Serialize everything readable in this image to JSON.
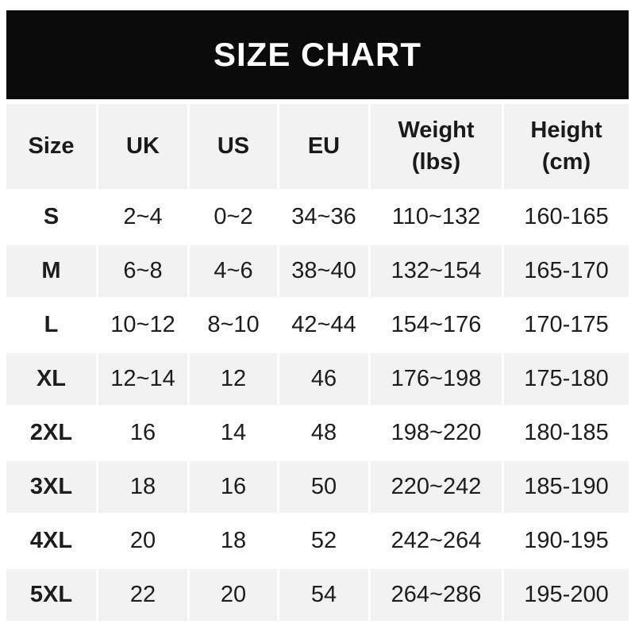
{
  "banner": {
    "title": "SIZE CHART"
  },
  "table": {
    "header_labels": [
      "Size",
      "UK",
      "US",
      "EU",
      "Weight\n(lbs)",
      "Height\n(cm)"
    ]
  },
  "chart_data": {
    "type": "table",
    "title": "SIZE CHART",
    "columns": [
      "Size",
      "UK",
      "US",
      "EU",
      "Weight (lbs)",
      "Height (cm)"
    ],
    "rows": [
      [
        "S",
        "2~4",
        "0~2",
        "34~36",
        "110~132",
        "160-165"
      ],
      [
        "M",
        "6~8",
        "4~6",
        "38~40",
        "132~154",
        "165-170"
      ],
      [
        "L",
        "10~12",
        "8~10",
        "42~44",
        "154~176",
        "170-175"
      ],
      [
        "XL",
        "12~14",
        "12",
        "46",
        "176~198",
        "175-180"
      ],
      [
        "2XL",
        "16",
        "14",
        "48",
        "198~220",
        "180-185"
      ],
      [
        "3XL",
        "18",
        "16",
        "50",
        "220~242",
        "185-190"
      ],
      [
        "4XL",
        "20",
        "18",
        "52",
        "242~264",
        "190-195"
      ],
      [
        "5XL",
        "22",
        "20",
        "54",
        "264~286",
        "195-200"
      ]
    ],
    "layout": {
      "striping": "alternating-rows",
      "alt_row_color": "#f2f2f2",
      "banner_bg": "#0b0b0b",
      "banner_text_color": "#ffffff",
      "text_color": "#1d1d1f"
    }
  }
}
